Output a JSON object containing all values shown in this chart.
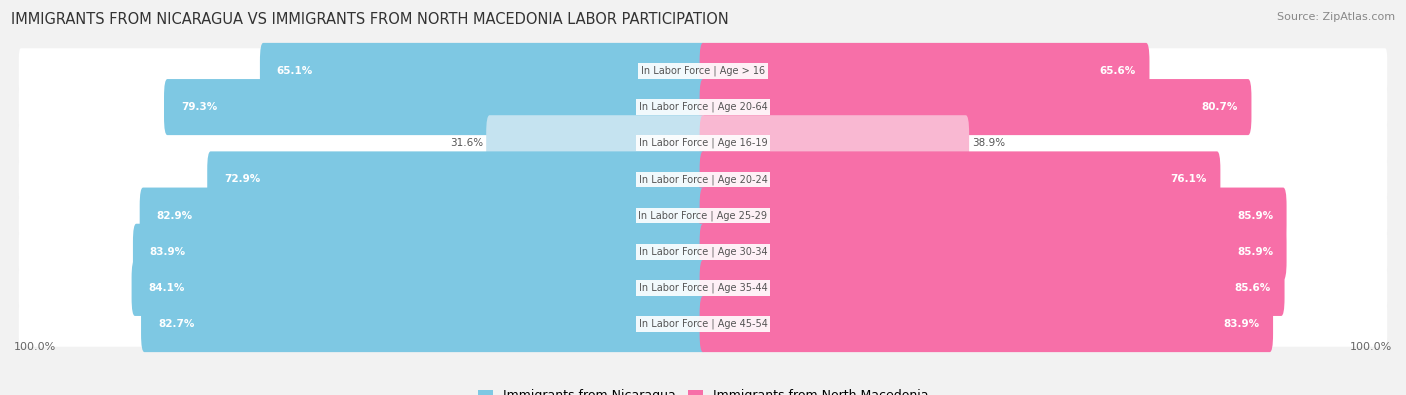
{
  "title": "IMMIGRANTS FROM NICARAGUA VS IMMIGRANTS FROM NORTH MACEDONIA LABOR PARTICIPATION",
  "source": "Source: ZipAtlas.com",
  "categories": [
    "In Labor Force | Age > 16",
    "In Labor Force | Age 20-64",
    "In Labor Force | Age 16-19",
    "In Labor Force | Age 20-24",
    "In Labor Force | Age 25-29",
    "In Labor Force | Age 30-34",
    "In Labor Force | Age 35-44",
    "In Labor Force | Age 45-54"
  ],
  "nicaragua_values": [
    65.1,
    79.3,
    31.6,
    72.9,
    82.9,
    83.9,
    84.1,
    82.7
  ],
  "north_macedonia_values": [
    65.6,
    80.7,
    38.9,
    76.1,
    85.9,
    85.9,
    85.6,
    83.9
  ],
  "nicaragua_color": "#7ec8e3",
  "nicaragua_color_light": "#c5e3f0",
  "north_macedonia_color": "#f76fa8",
  "north_macedonia_color_light": "#f9b8d2",
  "label_nicaragua": "Immigrants from Nicaragua",
  "label_north_macedonia": "Immigrants from North Macedonia",
  "bg_color": "#f2f2f2",
  "row_bg_color": "#ffffff",
  "title_fontsize": 10.5,
  "source_fontsize": 8,
  "bar_fontsize": 7.5,
  "category_fontsize": 7,
  "axis_label": "100.0%",
  "max_value": 100.0,
  "light_threshold": 50.0
}
